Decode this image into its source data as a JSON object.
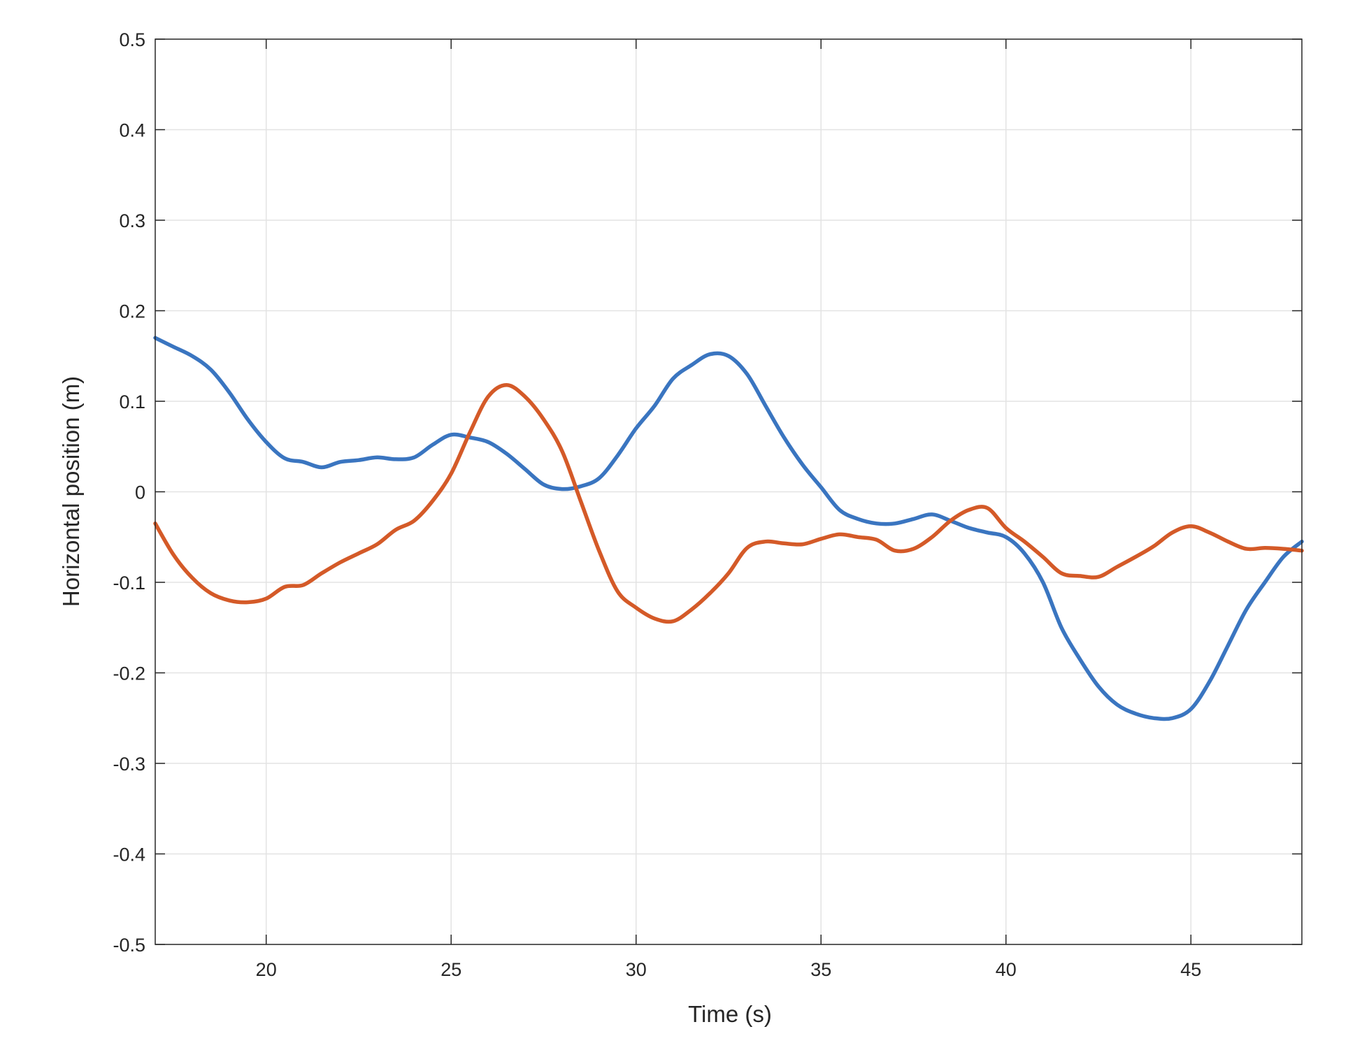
{
  "chart_data": {
    "type": "line",
    "title": "",
    "xlabel": "Time (s)",
    "ylabel": "Horizontal position (m)",
    "xlim": [
      17,
      48
    ],
    "ylim": [
      -0.5,
      0.5
    ],
    "xticks": [
      20,
      25,
      30,
      35,
      40,
      45
    ],
    "yticks": [
      -0.5,
      -0.4,
      -0.3,
      -0.2,
      -0.1,
      0,
      0.1,
      0.2,
      0.3,
      0.4,
      0.5
    ],
    "ytick_labels": [
      "-0.5",
      "-0.4",
      "-0.3",
      "-0.2",
      "-0.1",
      "0",
      "0.1",
      "0.2",
      "0.3",
      "0.4",
      "0.5"
    ],
    "grid": true,
    "legend": "none",
    "series": [
      {
        "color": "#3a75c0",
        "x": [
          17,
          17.5,
          18,
          18.5,
          19,
          19.5,
          20,
          20.5,
          21,
          21.5,
          22,
          22.5,
          23,
          23.5,
          24,
          24.5,
          25,
          25.5,
          26,
          26.5,
          27,
          27.5,
          28,
          28.5,
          29,
          29.5,
          30,
          30.5,
          31,
          31.5,
          32,
          32.5,
          33,
          33.5,
          34,
          34.5,
          35,
          35.5,
          36,
          36.5,
          37,
          37.5,
          38,
          38.5,
          39,
          39.5,
          40,
          40.5,
          41,
          41.5,
          42,
          42.5,
          43,
          43.5,
          44,
          44.5,
          45,
          45.5,
          46,
          46.5,
          47,
          47.5,
          48
        ],
        "y": [
          0.17,
          0.16,
          0.15,
          0.135,
          0.11,
          0.08,
          0.055,
          0.037,
          0.033,
          0.027,
          0.033,
          0.035,
          0.038,
          0.036,
          0.038,
          0.052,
          0.063,
          0.06,
          0.055,
          0.042,
          0.025,
          0.008,
          0.003,
          0.006,
          0.015,
          0.04,
          0.07,
          0.095,
          0.125,
          0.14,
          0.152,
          0.15,
          0.13,
          0.095,
          0.06,
          0.03,
          0.005,
          -0.02,
          -0.03,
          -0.035,
          -0.035,
          -0.03,
          -0.025,
          -0.032,
          -0.04,
          -0.045,
          -0.05,
          -0.068,
          -0.1,
          -0.15,
          -0.185,
          -0.215,
          -0.235,
          -0.245,
          -0.25,
          -0.25,
          -0.24,
          -0.21,
          -0.17,
          -0.13,
          -0.1,
          -0.072,
          -0.055
        ]
      },
      {
        "color": "#d45a28",
        "x": [
          17,
          17.5,
          18,
          18.5,
          19,
          19.5,
          20,
          20.5,
          21,
          21.5,
          22,
          22.5,
          23,
          23.5,
          24,
          24.5,
          25,
          25.5,
          26,
          26.5,
          27,
          27.5,
          28,
          28.5,
          29,
          29.5,
          30,
          30.5,
          31,
          31.5,
          32,
          32.5,
          33,
          33.5,
          34,
          34.5,
          35,
          35.5,
          36,
          36.5,
          37,
          37.5,
          38,
          38.5,
          39,
          39.5,
          40,
          40.5,
          41,
          41.5,
          42,
          42.5,
          43,
          43.5,
          44,
          44.5,
          45,
          45.5,
          46,
          46.5,
          47,
          47.5,
          48
        ],
        "y": [
          -0.035,
          -0.07,
          -0.095,
          -0.112,
          -0.12,
          -0.122,
          -0.118,
          -0.105,
          -0.103,
          -0.09,
          -0.078,
          -0.068,
          -0.058,
          -0.042,
          -0.032,
          -0.01,
          0.02,
          0.065,
          0.105,
          0.118,
          0.105,
          0.08,
          0.045,
          -0.01,
          -0.065,
          -0.11,
          -0.128,
          -0.14,
          -0.143,
          -0.13,
          -0.112,
          -0.09,
          -0.062,
          -0.055,
          -0.057,
          -0.058,
          -0.052,
          -0.047,
          -0.05,
          -0.053,
          -0.065,
          -0.063,
          -0.05,
          -0.032,
          -0.02,
          -0.018,
          -0.04,
          -0.055,
          -0.072,
          -0.09,
          -0.093,
          -0.094,
          -0.083,
          -0.072,
          -0.06,
          -0.045,
          -0.038,
          -0.045,
          -0.055,
          -0.063,
          -0.062,
          -0.063,
          -0.065
        ]
      }
    ]
  }
}
